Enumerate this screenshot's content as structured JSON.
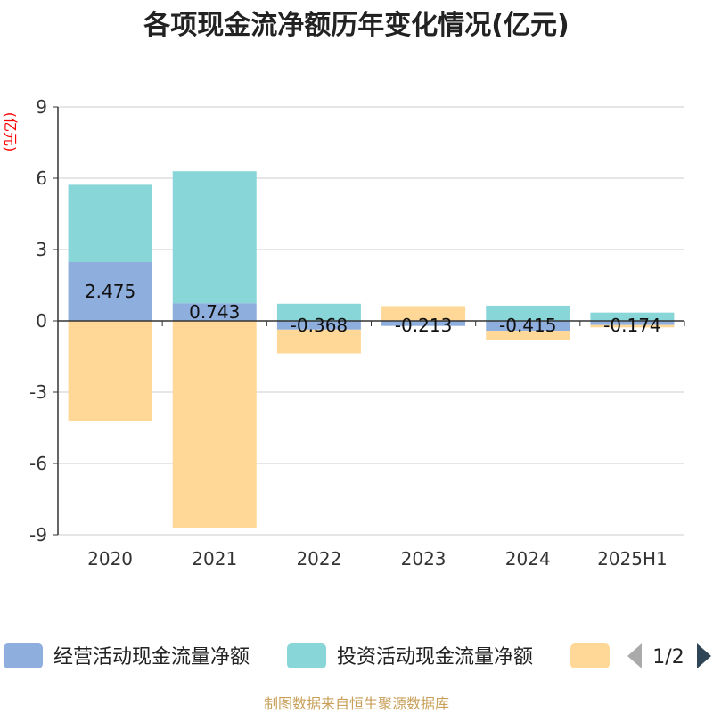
{
  "chart_data": {
    "type": "bar",
    "stacked": true,
    "title": "各项现金流净额历年变化情况(亿元)",
    "ylabel": "(亿元)",
    "ylim": [
      -9,
      9
    ],
    "yticks": [
      9,
      6,
      3,
      0,
      -3,
      -6,
      -9
    ],
    "categories": [
      "2020",
      "2021",
      "2022",
      "2023",
      "2024",
      "2025H1"
    ],
    "series": [
      {
        "name": "经营活动现金流量净额",
        "color": "#8eaedd",
        "values": [
          2.475,
          0.743,
          -0.368,
          -0.213,
          -0.415,
          -0.174
        ],
        "labels": [
          "2.475",
          "0.743",
          "-0.368",
          "-0.213",
          "-0.415",
          "-0.174"
        ]
      },
      {
        "name": "投资活动现金流量净额",
        "color": "#88d6d8",
        "values": [
          3.25,
          5.55,
          0.72,
          0.0,
          0.64,
          0.35
        ]
      },
      {
        "name": "",
        "color": "#ffd898",
        "values": [
          -4.2,
          -8.7,
          -1.0,
          0.62,
          -0.4,
          -0.1
        ]
      }
    ],
    "grid": true,
    "legend_position": "bottom"
  },
  "legend": {
    "page_indicator": "1/2"
  },
  "footer": {
    "source": "制图数据来自恒生聚源数据库"
  }
}
